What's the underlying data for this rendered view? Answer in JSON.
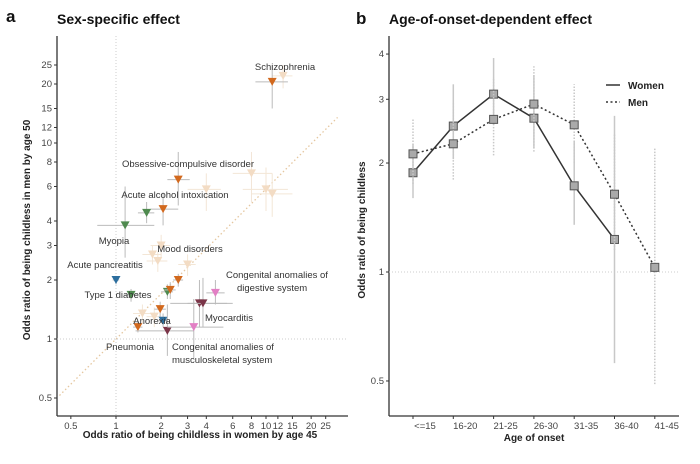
{
  "chart_data": [
    {
      "panel": "a",
      "type": "scatter",
      "title": "Sex-specific effect",
      "xlabel": "Odds ratio of being childless in women by age 45",
      "ylabel": "Odds ratio of being childless in men by age 50",
      "xscale": "log",
      "yscale": "log",
      "xlim": [
        0.4,
        30
      ],
      "ylim": [
        0.42,
        35
      ],
      "xticks": [
        0.5,
        1,
        2,
        3,
        4,
        6,
        8,
        10,
        12,
        15,
        20,
        25
      ],
      "yticks": [
        0.5,
        1,
        2,
        3,
        4,
        6,
        8,
        10,
        12,
        15,
        20,
        25
      ],
      "reference_lines": [
        "x=1",
        "y=1",
        "y=x"
      ],
      "colors": {
        "orange": "#d2691e",
        "green": "#4f8a4f",
        "blue": "#2c6e9e",
        "maroon": "#7b3548",
        "pink": "#e27fc4",
        "faded": "#f3dcc4"
      },
      "points": [
        {
          "label": "Schizophrenia",
          "x": 11,
          "y": 20.5,
          "color": "orange",
          "ci_x": [
            8.5,
            14
          ],
          "ci_y": [
            15,
            25
          ]
        },
        {
          "label": "Obsessive-compulsive disorder",
          "x": 2.6,
          "y": 6.5,
          "color": "orange",
          "ci_x": [
            2.2,
            3.1
          ],
          "ci_y": [
            4.8,
            9
          ]
        },
        {
          "label": "Acute alcohol intoxication",
          "x": 2.06,
          "y": 4.6,
          "color": "orange",
          "ci_x": [
            1.7,
            2.6
          ],
          "ci_y": [
            3.8,
            5.6
          ]
        },
        {
          "label": "",
          "x": 1.6,
          "y": 4.4,
          "color": "green",
          "ci_x": [
            1.4,
            1.8
          ],
          "ci_y": [
            3.9,
            5
          ]
        },
        {
          "label": "Myopia",
          "x": 1.15,
          "y": 3.8,
          "color": "green",
          "ci_x": [
            0.75,
            1.8
          ],
          "ci_y": [
            2.6,
            6
          ]
        },
        {
          "label": "Mood disorders",
          "x": 2.6,
          "y": 2.0,
          "color": "orange",
          "ci_x": [
            2.4,
            2.8
          ],
          "ci_y": [
            1.85,
            2.15
          ]
        },
        {
          "label": "Acute pancreatitis",
          "x": 1.0,
          "y": 2.0,
          "color": "blue",
          "ci_x": [
            0.95,
            1.05
          ],
          "ci_y": [
            1.9,
            2.1
          ]
        },
        {
          "label": "Type 1 diabetes",
          "x": 1.26,
          "y": 1.68,
          "color": "green",
          "ci_x": [
            1.15,
            1.4
          ],
          "ci_y": [
            1.55,
            1.8
          ]
        },
        {
          "label": "",
          "x": 2.2,
          "y": 1.74,
          "color": "green",
          "ci_x": [
            2.0,
            2.4
          ],
          "ci_y": [
            1.6,
            1.9
          ]
        },
        {
          "label": "",
          "x": 2.3,
          "y": 1.78,
          "color": "orange",
          "ci_x": [
            2.1,
            2.5
          ],
          "ci_y": [
            1.6,
            1.95
          ]
        },
        {
          "label": "",
          "x": 1.97,
          "y": 1.42,
          "color": "orange",
          "ci_x": [
            1.8,
            2.15
          ],
          "ci_y": [
            1.3,
            1.55
          ]
        },
        {
          "label": "Anorexia",
          "x": 2.06,
          "y": 1.24,
          "color": "blue",
          "ci_x": [
            1.9,
            2.2
          ],
          "ci_y": [
            1.15,
            1.35
          ]
        },
        {
          "label": "Pneumonia",
          "x": 1.4,
          "y": 1.15,
          "color": "orange",
          "ci_x": [
            1.3,
            1.5
          ],
          "ci_y": [
            1.08,
            1.22
          ]
        },
        {
          "label": "Congenital anomalies of musculoskeletal system",
          "x": 2.2,
          "y": 1.1,
          "color": "maroon",
          "ci_x": [
            1.35,
            3.3
          ],
          "ci_y": [
            0.82,
            1.5
          ]
        },
        {
          "label": "",
          "x": 3.3,
          "y": 1.15,
          "color": "pink",
          "ci_x": [
            2.2,
            5.2
          ],
          "ci_y": [
            0.8,
            1.6
          ]
        },
        {
          "label": "Myocarditis",
          "x": 3.6,
          "y": 1.52,
          "color": "maroon",
          "ci_x": [
            2.3,
            5.5
          ],
          "ci_y": [
            1.15,
            2.0
          ]
        },
        {
          "label": "",
          "x": 3.8,
          "y": 1.52,
          "color": "maroon",
          "ci_x": [
            3.0,
            6.0
          ],
          "ci_y": [
            1.15,
            2.05
          ]
        },
        {
          "label": "Congenital anomalies of digestive system",
          "x": 4.6,
          "y": 1.72,
          "color": "pink",
          "ci_x": [
            4.0,
            5.3
          ],
          "ci_y": [
            1.5,
            2.0
          ]
        },
        {
          "label": "",
          "x": 13,
          "y": 22,
          "color": "faded",
          "ci_x": [
            11,
            15
          ],
          "ci_y": [
            19,
            25
          ]
        },
        {
          "label": "",
          "x": 8,
          "y": 7,
          "color": "faded",
          "ci_x": [
            6,
            11
          ],
          "ci_y": [
            5,
            9
          ]
        },
        {
          "label": "",
          "x": 10,
          "y": 5.8,
          "color": "faded",
          "ci_x": [
            7,
            14
          ],
          "ci_y": [
            4.5,
            7.5
          ]
        },
        {
          "label": "",
          "x": 11,
          "y": 5.5,
          "color": "faded",
          "ci_x": [
            8,
            15
          ],
          "ci_y": [
            4.2,
            7
          ]
        },
        {
          "label": "",
          "x": 4,
          "y": 5.8,
          "color": "faded",
          "ci_x": [
            3,
            5
          ],
          "ci_y": [
            4.5,
            7
          ]
        },
        {
          "label": "",
          "x": 2.0,
          "y": 3.0,
          "color": "faded",
          "ci_x": [
            1.7,
            2.3
          ],
          "ci_y": [
            2.6,
            3.4
          ]
        },
        {
          "label": "",
          "x": 1.75,
          "y": 2.7,
          "color": "faded",
          "ci_x": [
            1.5,
            2.0
          ],
          "ci_y": [
            2.4,
            3.0
          ]
        },
        {
          "label": "",
          "x": 1.9,
          "y": 2.5,
          "color": "faded",
          "ci_x": [
            1.6,
            2.2
          ],
          "ci_y": [
            2.2,
            2.8
          ]
        },
        {
          "label": "",
          "x": 3.0,
          "y": 2.4,
          "color": "faded",
          "ci_x": [
            2.6,
            3.4
          ],
          "ci_y": [
            2.1,
            2.7
          ]
        },
        {
          "label": "",
          "x": 1.5,
          "y": 1.35,
          "color": "faded",
          "ci_x": [
            1.3,
            1.7
          ],
          "ci_y": [
            1.2,
            1.5
          ]
        },
        {
          "label": "",
          "x": 1.8,
          "y": 1.3,
          "color": "faded",
          "ci_x": [
            1.6,
            2.0
          ],
          "ci_y": [
            1.15,
            1.45
          ]
        }
      ]
    },
    {
      "panel": "b",
      "type": "line",
      "title": "Age-of-onset-dependent effect",
      "xlabel": "Age of onset",
      "ylabel": "Odds ratio of being childless",
      "yscale": "log",
      "ylim": [
        0.42,
        4.4
      ],
      "yticks": [
        0.5,
        1,
        2,
        3,
        4
      ],
      "categories": [
        "<=15",
        "16-20",
        "21-25",
        "26-30",
        "31-35",
        "36-40",
        "41-45"
      ],
      "reference_line": "y=1",
      "legend": "top-right",
      "series": [
        {
          "name": "Women",
          "style": "solid",
          "values": [
            1.88,
            2.53,
            3.1,
            2.66,
            1.73,
            1.23,
            null
          ],
          "ci": [
            [
              1.6,
              2.25
            ],
            [
              2.05,
              3.3
            ],
            [
              2.55,
              3.9
            ],
            [
              2.2,
              3.5
            ],
            [
              1.35,
              2.3
            ],
            [
              0.56,
              2.7
            ],
            null
          ]
        },
        {
          "name": "Men",
          "style": "dotted",
          "values": [
            2.12,
            2.26,
            2.64,
            2.91,
            2.55,
            1.64,
            1.03
          ],
          "ci": [
            [
              1.75,
              2.65
            ],
            [
              1.8,
              2.95
            ],
            [
              2.1,
              3.45
            ],
            [
              2.15,
              3.7
            ],
            [
              2.0,
              3.3
            ],
            [
              1.15,
              2.4
            ],
            [
              0.49,
              2.2
            ]
          ]
        }
      ]
    }
  ]
}
